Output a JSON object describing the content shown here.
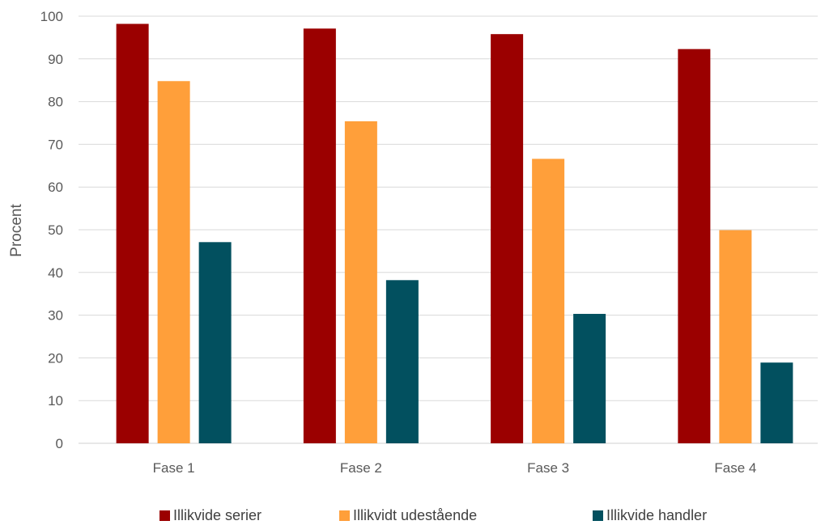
{
  "chart_data": {
    "type": "bar",
    "title": "",
    "xlabel": "",
    "ylabel": "Procent",
    "ylim": [
      0,
      100
    ],
    "yticks": [
      0,
      10,
      20,
      30,
      40,
      50,
      60,
      70,
      80,
      90,
      100
    ],
    "grid": true,
    "legend_position": "bottom",
    "categories": [
      "Fase 1",
      "Fase 2",
      "Fase 3",
      "Fase 4"
    ],
    "series": [
      {
        "name": "Illikvide serier",
        "color": "#9b0000",
        "values": [
          98.2,
          97.1,
          95.8,
          92.3
        ]
      },
      {
        "name": "Illikvidt udestående",
        "color": "#ff9f3a",
        "values": [
          84.8,
          75.4,
          66.6,
          49.9
        ]
      },
      {
        "name": "Illikvide handler",
        "color": "#02505f",
        "values": [
          47.1,
          38.2,
          30.3,
          18.9
        ]
      }
    ]
  }
}
